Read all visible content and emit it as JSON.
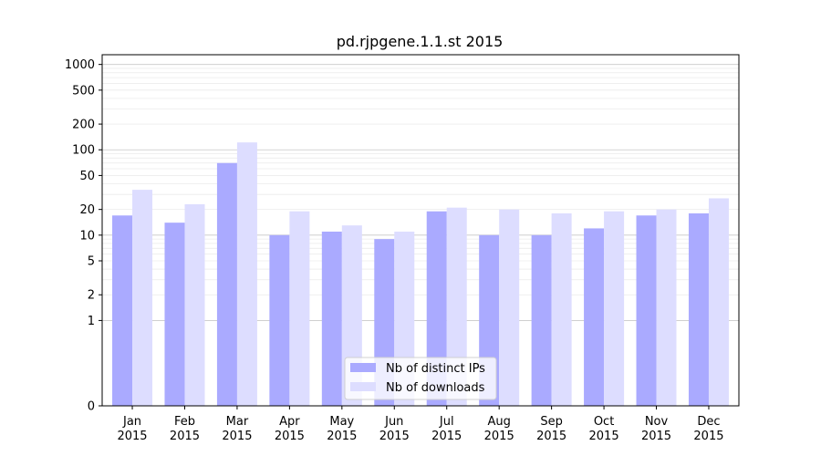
{
  "chart_data": {
    "type": "bar",
    "title": "pd.rjpgene.1.1.st 2015",
    "xlabel": "",
    "ylabel": "",
    "y_scale": "symlog",
    "ylim": [
      0,
      1300
    ],
    "y_ticks": [
      0,
      1,
      2,
      5,
      10,
      20,
      50,
      100,
      200,
      500,
      1000
    ],
    "grid": true,
    "legend_position": "bottom-center",
    "categories": [
      "Jan\n2015",
      "Feb\n2015",
      "Mar\n2015",
      "Apr\n2015",
      "May\n2015",
      "Jun\n2015",
      "Jul\n2015",
      "Aug\n2015",
      "Sep\n2015",
      "Oct\n2015",
      "Nov\n2015",
      "Dec\n2015"
    ],
    "series": [
      {
        "name": "Nb of distinct IPs",
        "color": "#aaaaff",
        "values": [
          17,
          14,
          70,
          10,
          11,
          9,
          19,
          10,
          10,
          12,
          17,
          18
        ]
      },
      {
        "name": "Nb of downloads",
        "color": "#ddddff",
        "values": [
          34,
          23,
          122,
          19,
          13,
          11,
          21,
          20,
          18,
          19,
          20,
          27
        ]
      }
    ]
  }
}
